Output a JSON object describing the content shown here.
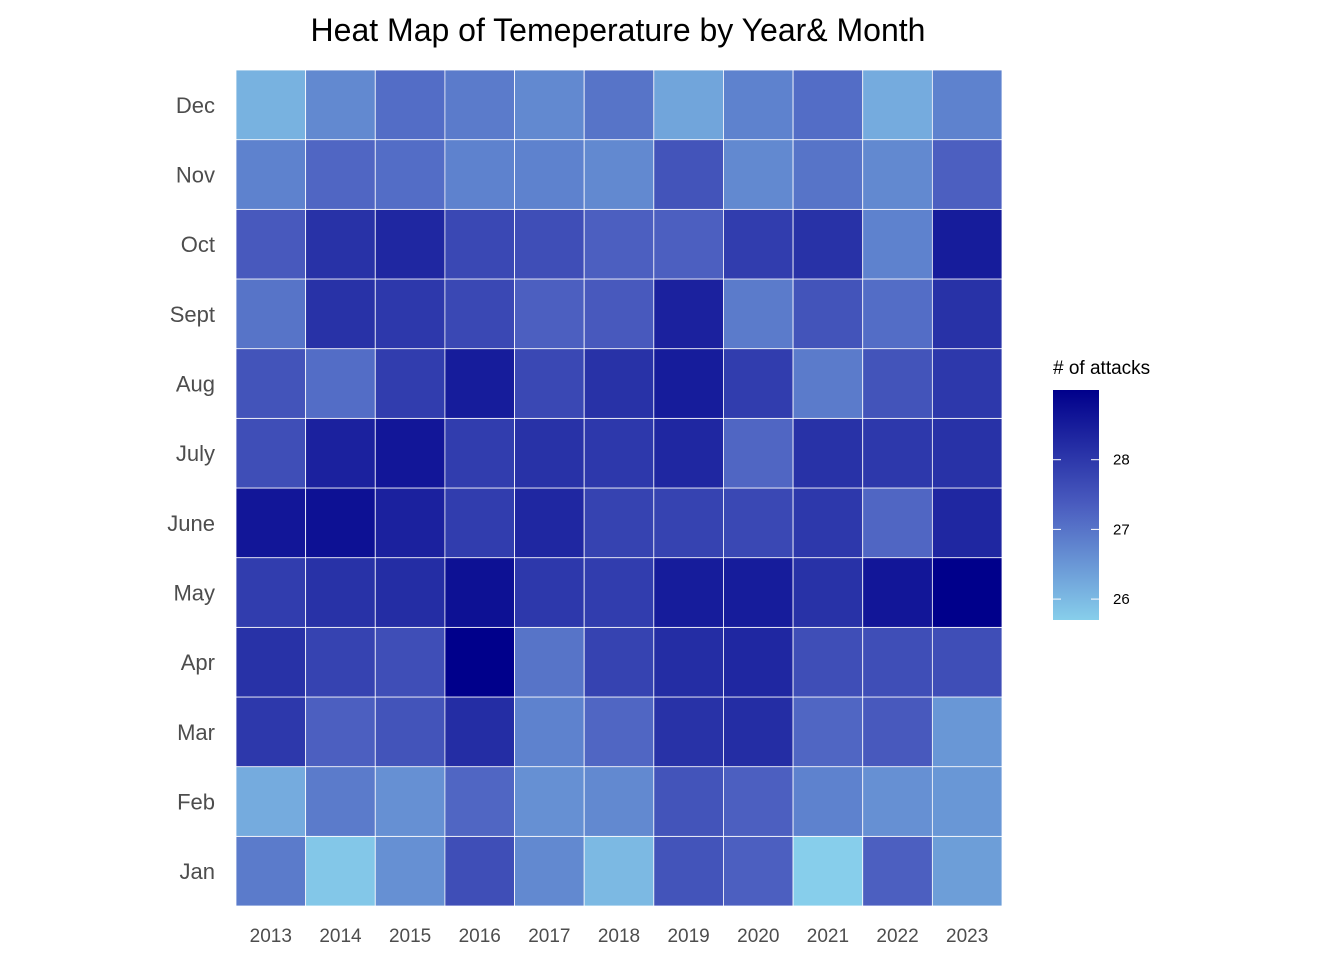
{
  "chart_data": {
    "type": "heatmap",
    "title": "Heat Map of Temeperature by Year& Month",
    "xlabel": "",
    "ylabel": "",
    "x": [
      "2013",
      "2014",
      "2015",
      "2016",
      "2017",
      "2018",
      "2019",
      "2020",
      "2021",
      "2022",
      "2023"
    ],
    "y": [
      "Jan",
      "Feb",
      "Mar",
      "Apr",
      "May",
      "June",
      "July",
      "Aug",
      "Sept",
      "Oct",
      "Nov",
      "Dec"
    ],
    "values": [
      [
        26.9,
        25.8,
        26.6,
        27.6,
        26.7,
        26.0,
        27.5,
        27.3,
        25.7,
        27.3,
        26.4
      ],
      [
        26.2,
        26.9,
        26.6,
        27.2,
        26.6,
        26.7,
        27.5,
        27.3,
        26.8,
        26.6,
        26.5
      ],
      [
        28.0,
        27.3,
        27.5,
        28.2,
        26.8,
        27.2,
        28.1,
        28.2,
        27.2,
        27.4,
        26.5
      ],
      [
        28.1,
        27.8,
        27.6,
        29.0,
        27.0,
        27.8,
        28.2,
        28.3,
        27.6,
        27.6,
        27.6
      ],
      [
        27.9,
        28.1,
        28.2,
        28.7,
        28.0,
        27.9,
        28.5,
        28.5,
        28.1,
        28.6,
        29.0
      ],
      [
        28.6,
        28.7,
        28.4,
        27.9,
        28.3,
        27.8,
        27.8,
        27.7,
        28.0,
        27.2,
        28.3
      ],
      [
        27.6,
        28.4,
        28.6,
        27.9,
        28.1,
        28.0,
        28.3,
        27.2,
        28.1,
        28.0,
        28.1
      ],
      [
        27.5,
        27.1,
        27.9,
        28.5,
        27.7,
        28.1,
        28.5,
        27.9,
        26.9,
        27.5,
        28.0
      ],
      [
        27.0,
        28.1,
        28.0,
        27.7,
        27.3,
        27.4,
        28.4,
        26.9,
        27.5,
        27.1,
        28.1
      ],
      [
        27.4,
        28.1,
        28.3,
        27.7,
        27.6,
        27.3,
        27.3,
        27.9,
        28.1,
        26.8,
        28.5
      ],
      [
        26.8,
        27.2,
        27.1,
        26.8,
        26.8,
        26.7,
        27.5,
        26.7,
        27.0,
        26.7,
        27.3
      ],
      [
        26.1,
        26.7,
        27.1,
        26.9,
        26.7,
        27.0,
        26.3,
        26.8,
        27.1,
        26.2,
        26.8
      ]
    ],
    "legend": {
      "title": "# of attacks",
      "ticks": [
        "26",
        "27",
        "28"
      ],
      "min": 25.7,
      "max": 29.0,
      "position": "right"
    },
    "colorscale": {
      "low": "#87CEEB",
      "mid": "#4A5CBF",
      "high": "#00008B"
    },
    "cell_border": "#ffffff",
    "grid": false
  }
}
